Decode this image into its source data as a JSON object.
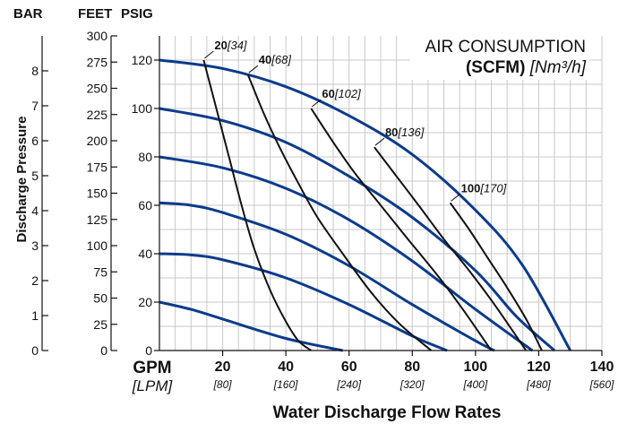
{
  "chart_data": {
    "type": "line",
    "title_line1": "AIR CONSUMPTION",
    "title_unit_bold": "(SCFM)",
    "title_unit_italic": "[Nm³/h]",
    "xlabel": "Water Discharge Flow Rates",
    "ylabel": "Discharge Pressure",
    "x_unit_primary": "GPM",
    "x_unit_secondary": "[LPM]",
    "axis_headers": {
      "bar": "BAR",
      "feet": "FEET",
      "psig": "PSIG"
    },
    "xlim": [
      0,
      140
    ],
    "ylim": [
      0,
      130
    ],
    "grid": true,
    "x_ticks": [
      {
        "gpm": "20",
        "lpm": "[80]"
      },
      {
        "gpm": "40",
        "lpm": "[160]"
      },
      {
        "gpm": "60",
        "lpm": "[240]"
      },
      {
        "gpm": "80",
        "lpm": "[320]"
      },
      {
        "gpm": "100",
        "lpm": "[400]"
      },
      {
        "gpm": "120",
        "lpm": "[480]"
      },
      {
        "gpm": "140",
        "lpm": "[560]"
      }
    ],
    "psig_ticks": [
      "0",
      "20",
      "40",
      "60",
      "80",
      "100",
      "120"
    ],
    "feet_ticks": [
      "0",
      "25",
      "50",
      "75",
      "100",
      "125",
      "150",
      "175",
      "200",
      "225",
      "250",
      "275",
      "300"
    ],
    "bar_ticks": [
      "0",
      "1",
      "2",
      "3",
      "4",
      "5",
      "6",
      "7",
      "8"
    ],
    "pressure_series": [
      {
        "x": [
          0,
          20,
          40,
          60,
          80,
          100,
          115,
          130
        ],
        "y": [
          120,
          116.5,
          109,
          97,
          81,
          58,
          35,
          0
        ]
      },
      {
        "x": [
          0,
          20,
          40,
          60,
          80,
          100,
          113,
          125
        ],
        "y": [
          100,
          95,
          86,
          72,
          55,
          33,
          14,
          0
        ]
      },
      {
        "x": [
          0,
          20,
          40,
          60,
          80,
          100,
          118
        ],
        "y": [
          80,
          75.5,
          67,
          54,
          37,
          17,
          0
        ]
      },
      {
        "x": [
          0,
          10,
          20,
          40,
          60,
          80,
          100,
          106
        ],
        "y": [
          61,
          60,
          57,
          48,
          35,
          19,
          4,
          0
        ]
      },
      {
        "x": [
          0,
          10,
          20,
          40,
          60,
          80,
          91
        ],
        "y": [
          40,
          39.5,
          37.5,
          30,
          19,
          6,
          0
        ]
      },
      {
        "x": [
          0,
          10,
          20,
          40,
          58
        ],
        "y": [
          20,
          17,
          13,
          5,
          0
        ]
      }
    ],
    "air_series": [
      {
        "label_bold": "20",
        "label_italic": "[34]",
        "x": [
          14,
          18,
          22,
          26,
          30,
          35,
          40,
          44,
          48
        ],
        "y": [
          120,
          100,
          80,
          60,
          42,
          25,
          12,
          4,
          0
        ]
      },
      {
        "label_bold": "40",
        "label_italic": "[68]",
        "x": [
          28,
          33,
          38,
          44,
          50,
          58,
          67,
          76,
          86
        ],
        "y": [
          114,
          98,
          84,
          69,
          55,
          40,
          24,
          11,
          0
        ]
      },
      {
        "label_bold": "60",
        "label_italic": "[102]",
        "x": [
          48,
          55,
          62,
          70,
          78,
          88,
          96,
          105
        ],
        "y": [
          100,
          86,
          73,
          60,
          47,
          31,
          17,
          0
        ]
      },
      {
        "label_bold": "80",
        "label_italic": "[136]",
        "x": [
          68,
          75,
          82,
          90,
          98,
          106,
          116
        ],
        "y": [
          84,
          72,
          60,
          46,
          33,
          19,
          0
        ]
      },
      {
        "label_bold": "100",
        "label_italic": "[170]",
        "x": [
          92,
          98,
          104,
          110,
          116,
          121
        ],
        "y": [
          61,
          50,
          38,
          26,
          13,
          0
        ]
      }
    ],
    "colors": {
      "pressure": "#0b3b8c",
      "air": "#111111",
      "grid": "#c8c8c8"
    }
  }
}
